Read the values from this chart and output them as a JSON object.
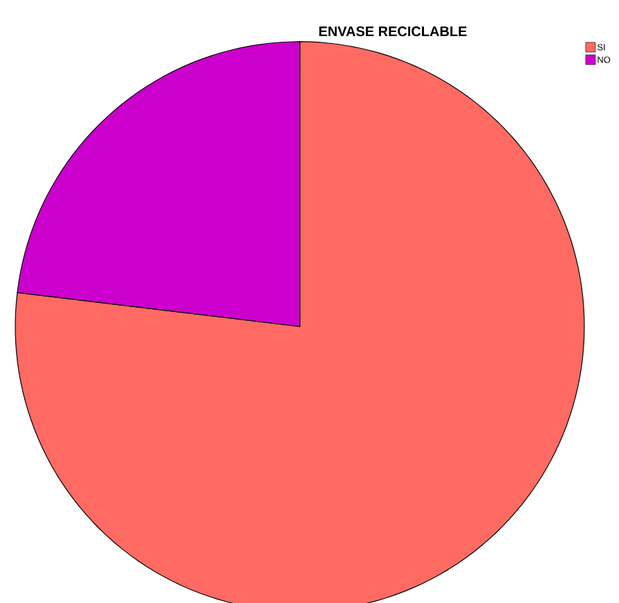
{
  "chart_data": {
    "type": "pie",
    "title": "ENVASE RECICLABLE",
    "categories": [
      "SI",
      "NO"
    ],
    "values": [
      76.9,
      23.1
    ],
    "colors": [
      "#ff6a63",
      "#cc00cc"
    ],
    "legend": "top right"
  }
}
